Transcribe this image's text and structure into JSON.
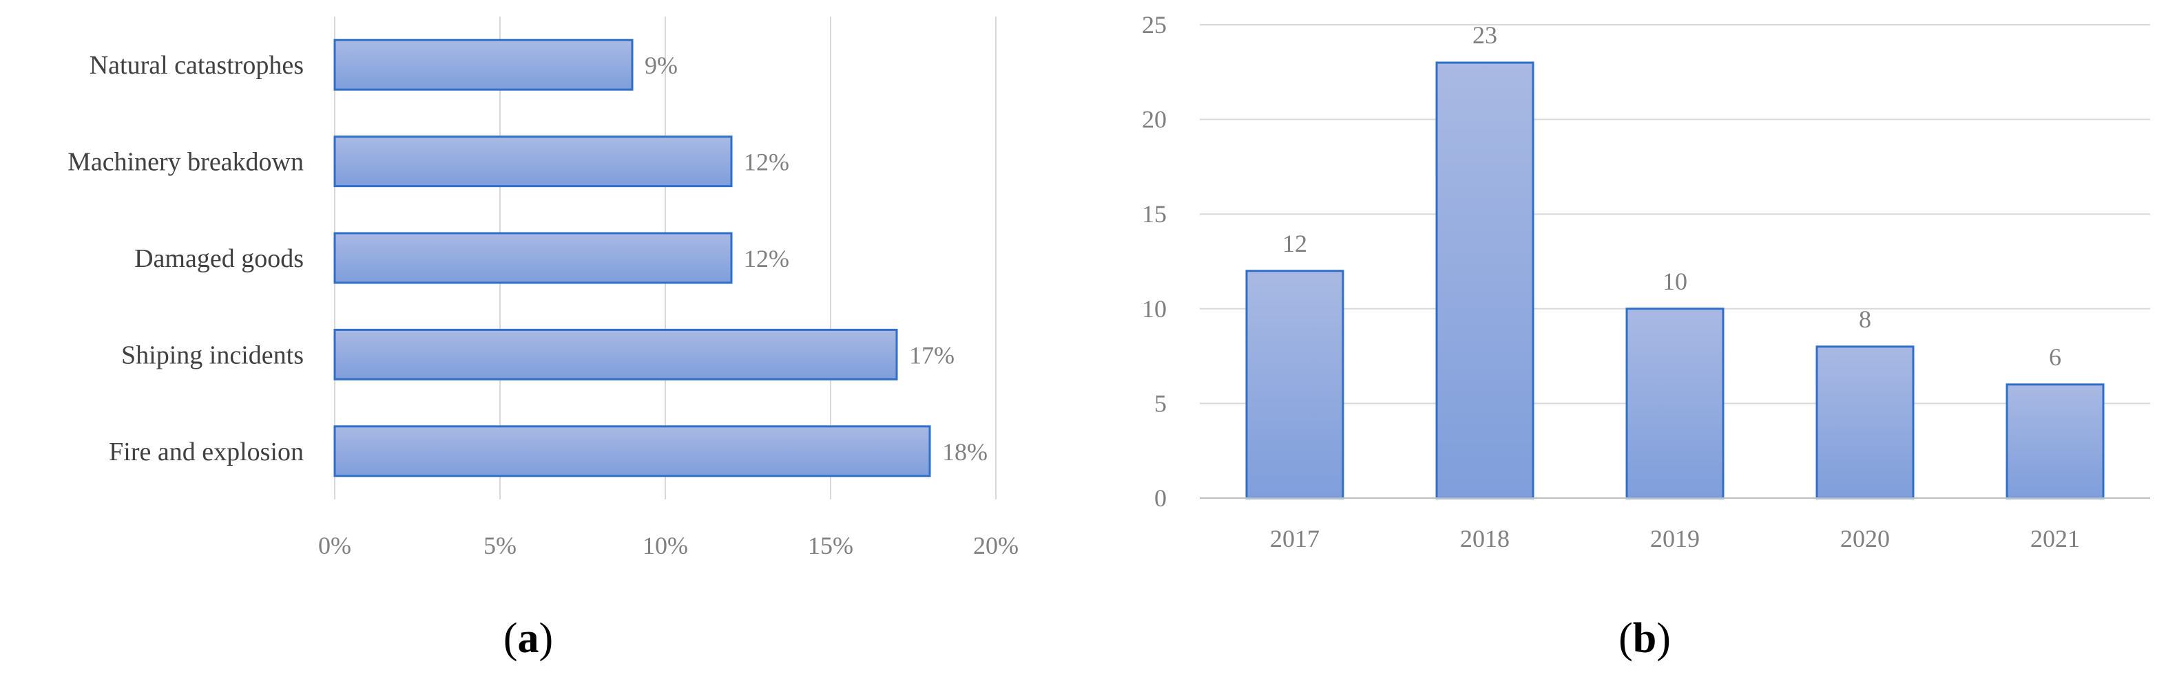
{
  "chart_data": [
    {
      "id": "a",
      "type": "bar",
      "orientation": "horizontal",
      "categories": [
        "Natural catastrophes",
        "Machinery breakdown",
        "Damaged goods",
        "Shiping incidents",
        "Fire and explosion"
      ],
      "values": [
        9,
        12,
        12,
        17,
        18
      ],
      "value_labels": [
        "9%",
        "12%",
        "12%",
        "17%",
        "18%"
      ],
      "xlim": [
        0,
        20
      ],
      "x_ticks": [
        0,
        5,
        10,
        15,
        20
      ],
      "x_tick_labels": [
        "0%",
        "5%",
        "10%",
        "15%",
        "20%"
      ],
      "grid": "vertical",
      "legend": "none",
      "panel_label_letter": "a",
      "panel_label_open": "(",
      "panel_label_close": ")"
    },
    {
      "id": "b",
      "type": "bar",
      "orientation": "vertical",
      "categories": [
        "2017",
        "2018",
        "2019",
        "2020",
        "2021"
      ],
      "values": [
        12,
        23,
        10,
        8,
        6
      ],
      "value_labels": [
        "12",
        "23",
        "10",
        "8",
        "6"
      ],
      "ylim": [
        0,
        25
      ],
      "y_ticks": [
        0,
        5,
        10,
        15,
        20,
        25
      ],
      "y_tick_labels": [
        "0",
        "5",
        "10",
        "15",
        "20",
        "25"
      ],
      "grid": "horizontal",
      "legend": "none",
      "panel_label_letter": "b",
      "panel_label_open": "(",
      "panel_label_close": ")"
    }
  ],
  "colors": {
    "bar_fill_top": "#a9b9e3",
    "bar_fill_bottom": "#7f9edb",
    "bar_stroke": "#2f6fc9",
    "grid": "#d9d9d9",
    "axis": "#bfbfbf"
  }
}
